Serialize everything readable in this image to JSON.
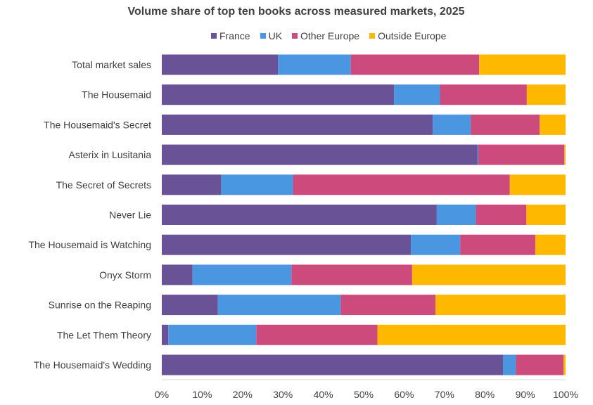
{
  "chart_data": {
    "type": "bar",
    "orientation": "horizontal",
    "stacked": true,
    "title": "Volume share of top ten books across measured markets, 2025",
    "categories": [
      "Total market sales",
      "The Housemaid",
      "The Housemaid's Secret",
      "Asterix in Lusitania",
      "The Secret of Secrets",
      "Never Lie",
      "The Housemaid is Watching",
      "Onyx Storm",
      "Sunrise on the Reaping",
      "The Let Them Theory",
      "The Housemaid's Wedding"
    ],
    "series": [
      {
        "name": "France",
        "color": "#6A5297",
        "values": [
          0.288,
          0.575,
          0.671,
          0.782,
          0.147,
          0.681,
          0.617,
          0.076,
          0.139,
          0.016,
          0.845
        ]
      },
      {
        "name": "UK",
        "color": "#4A96E0",
        "values": [
          0.18,
          0.114,
          0.094,
          0.002,
          0.178,
          0.097,
          0.122,
          0.245,
          0.304,
          0.218,
          0.032
        ]
      },
      {
        "name": "Other Europe",
        "color": "#CC4A7C",
        "values": [
          0.318,
          0.215,
          0.171,
          0.213,
          0.537,
          0.125,
          0.186,
          0.299,
          0.235,
          0.3,
          0.118
        ]
      },
      {
        "name": "Outside Europe",
        "color": "#FFB800",
        "values": [
          0.214,
          0.096,
          0.064,
          0.003,
          0.138,
          0.097,
          0.075,
          0.38,
          0.322,
          0.466,
          0.005
        ]
      }
    ],
    "xlim": [
      0,
      1
    ],
    "x_ticks": [
      "0%",
      "10%",
      "20%",
      "30%",
      "40%",
      "50%",
      "60%",
      "70%",
      "80%",
      "90%",
      "100%"
    ],
    "legend_position": "top",
    "grid": false
  }
}
